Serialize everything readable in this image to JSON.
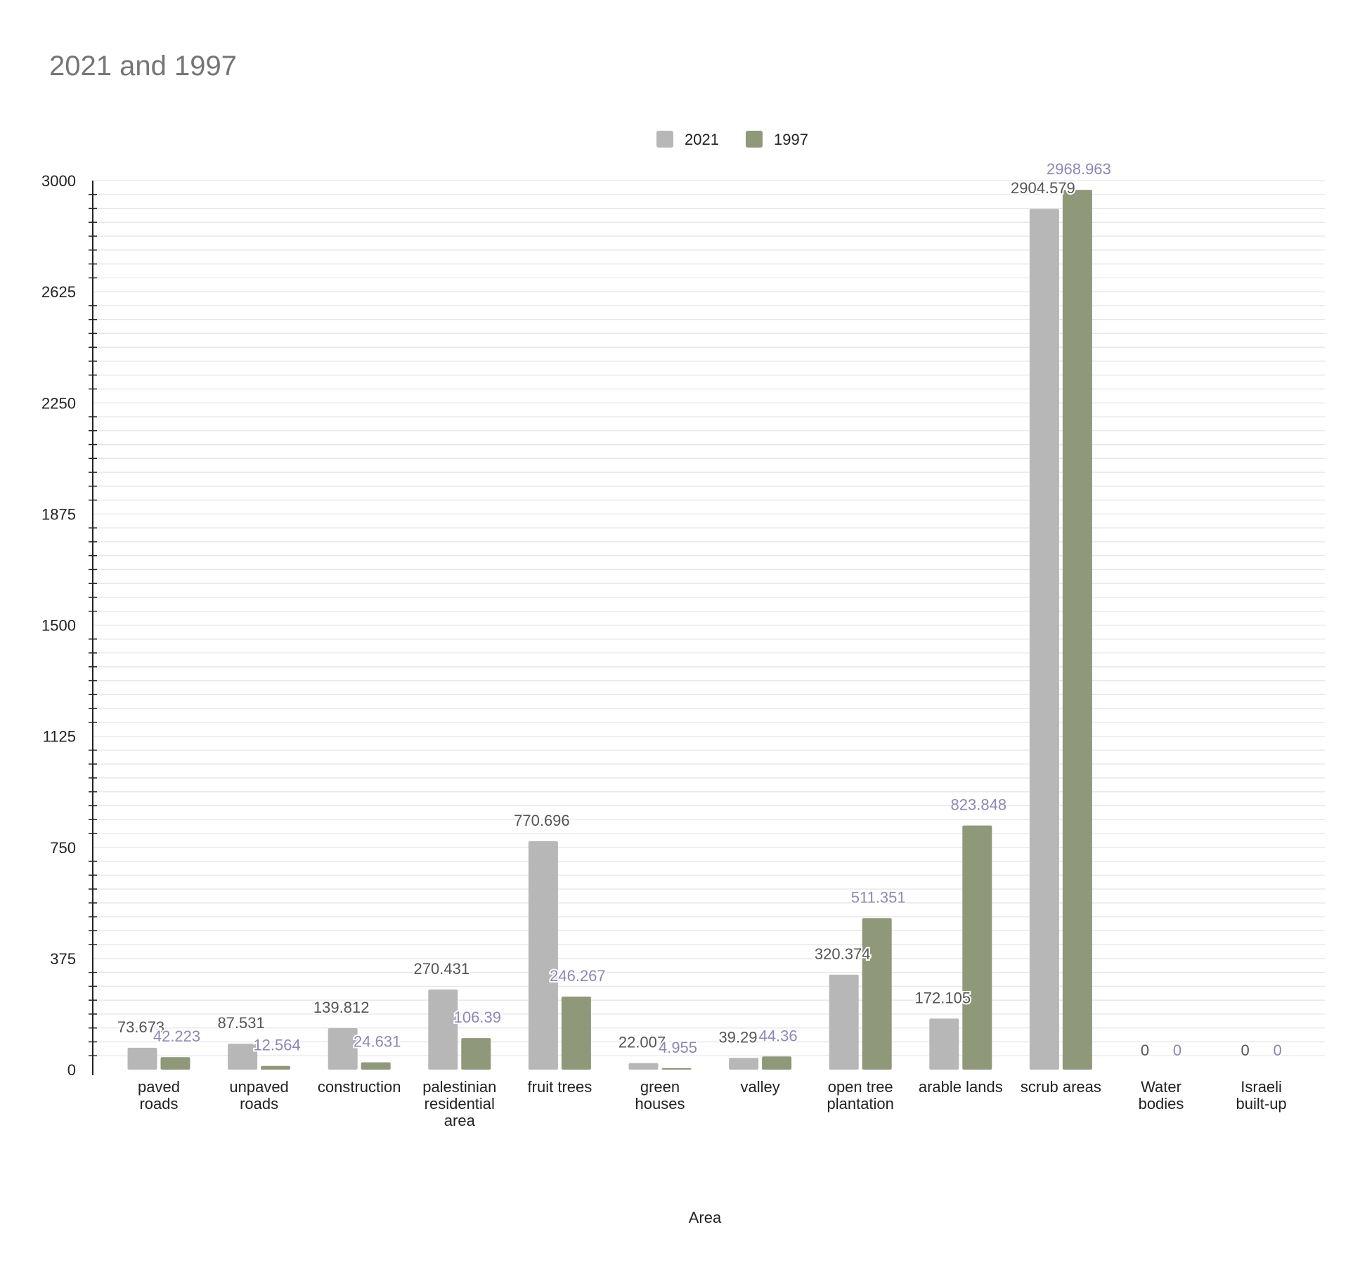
{
  "chart_data": {
    "type": "bar",
    "title": "2021 and 1997",
    "xlabel": "Area",
    "ylabel": "",
    "ylim": [
      0,
      3000
    ],
    "yticks": [
      0,
      375,
      750,
      1125,
      1500,
      1875,
      2250,
      2625,
      3000
    ],
    "grid": true,
    "legend_position": "top-center",
    "categories": [
      "paved roads",
      "unpaved roads",
      "construction",
      "palestinian residential area",
      "fruit trees",
      "green houses",
      "valley",
      "open tree plantation",
      "arable lands",
      "scrub areas",
      "Water bodies",
      "Israeli built-up"
    ],
    "category_label_lines": [
      [
        "paved",
        "roads"
      ],
      [
        "unpaved",
        "roads"
      ],
      [
        "construction"
      ],
      [
        "palestinian",
        "residential",
        "area"
      ],
      [
        "fruit trees"
      ],
      [
        "green",
        "houses"
      ],
      [
        "valley"
      ],
      [
        "open tree",
        "plantation"
      ],
      [
        "arable lands"
      ],
      [
        "scrub areas"
      ],
      [
        "Water",
        "bodies"
      ],
      [
        "Israeli",
        "built-up"
      ]
    ],
    "series": [
      {
        "name": "2021",
        "color": "#b7b7b7",
        "label_color": "#555555",
        "values": [
          73.673,
          87.531,
          139.812,
          270.431,
          770.696,
          22.007,
          39.294,
          320.374,
          172.105,
          2904.579,
          0,
          0
        ],
        "data_labels": [
          "73.673",
          "87.531",
          "139.812",
          "270.431",
          "770.696",
          "22.007",
          "39.294",
          "320.374",
          "172.105",
          "2904.579",
          "0",
          "0"
        ]
      },
      {
        "name": "1997",
        "color": "#8f9878",
        "label_color": "#8e86b4",
        "values": [
          42.223,
          12.564,
          24.631,
          106.39,
          246.267,
          4.955,
          44.36,
          511.351,
          823.848,
          2968.963,
          0,
          0
        ],
        "data_labels": [
          "42.223",
          "12.564",
          "24.631",
          "106.39",
          "246.267",
          "4.955",
          "44.36",
          "511.351",
          "823.848",
          "2968.963",
          "0",
          "0"
        ]
      }
    ]
  }
}
